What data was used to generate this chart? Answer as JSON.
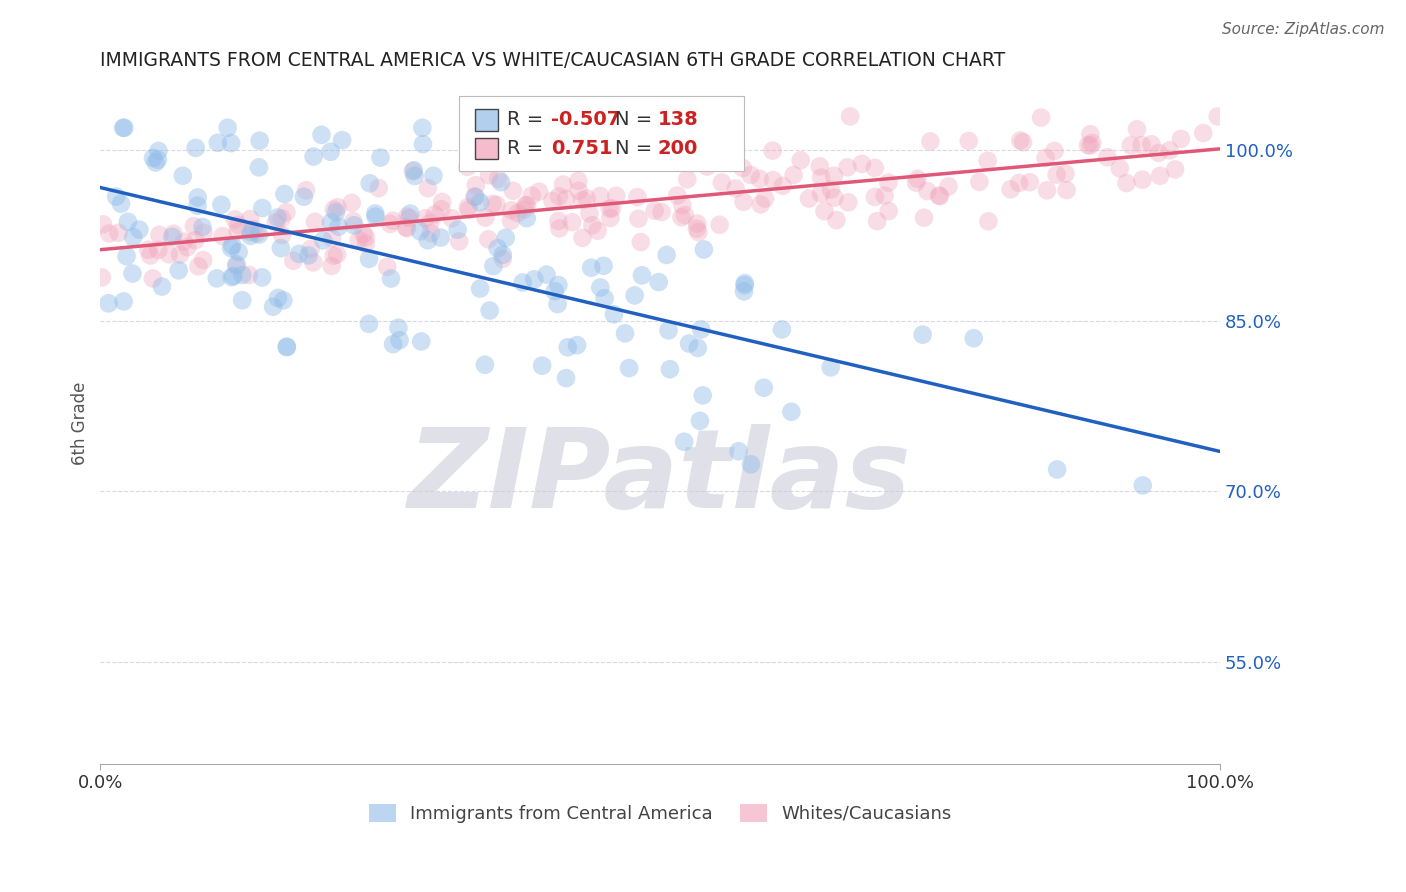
{
  "title": "IMMIGRANTS FROM CENTRAL AMERICA VS WHITE/CAUCASIAN 6TH GRADE CORRELATION CHART",
  "source": "Source: ZipAtlas.com",
  "ylabel": "6th Grade",
  "ytick_labels": [
    "55.0%",
    "70.0%",
    "85.0%",
    "100.0%"
  ],
  "ytick_values": [
    0.55,
    0.7,
    0.85,
    1.0
  ],
  "xmin": 0.0,
  "xmax": 1.0,
  "ymin": 0.46,
  "ymax": 1.06,
  "blue_color": "#90bce8",
  "pink_color": "#f0a0b8",
  "blue_line_color": "#2060c0",
  "pink_line_color": "#e05878",
  "blue_line_start": 0.97,
  "blue_line_end": 0.73,
  "pink_line_start": 0.915,
  "pink_line_end": 1.0,
  "watermark": "ZIPatlas",
  "watermark_color": "#c8c8d8",
  "R_blue": -0.507,
  "R_pink": 0.751,
  "N_blue": 138,
  "N_pink": 200,
  "background_color": "#ffffff",
  "grid_color": "#d0d0e0",
  "legend_R_blue_color": "#cc0000",
  "legend_R_pink_color": "#cc0000",
  "legend_N_color": "#cc0000"
}
